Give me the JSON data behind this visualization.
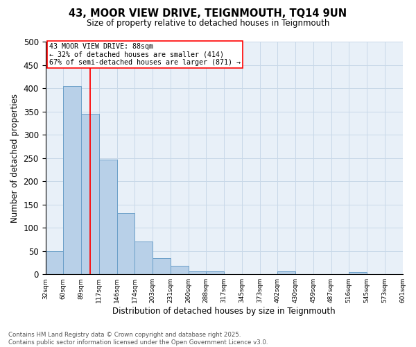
{
  "title": "43, MOOR VIEW DRIVE, TEIGNMOUTH, TQ14 9UN",
  "subtitle": "Size of property relative to detached houses in Teignmouth",
  "xlabel": "Distribution of detached houses by size in Teignmouth",
  "ylabel": "Number of detached properties",
  "bar_color": "#b8d0e8",
  "bar_edge_color": "#6a9fc8",
  "bar_heights": [
    50,
    405,
    345,
    247,
    132,
    70,
    35,
    18,
    6,
    6,
    0,
    0,
    0,
    6,
    0,
    0,
    0,
    5,
    0,
    0
  ],
  "bin_labels": [
    "32sqm",
    "60sqm",
    "89sqm",
    "117sqm",
    "146sqm",
    "174sqm",
    "203sqm",
    "231sqm",
    "260sqm",
    "288sqm",
    "317sqm",
    "345sqm",
    "373sqm",
    "402sqm",
    "430sqm",
    "459sqm",
    "487sqm",
    "516sqm",
    "545sqm",
    "573sqm",
    "601sqm"
  ],
  "ylim": [
    0,
    500
  ],
  "yticks": [
    0,
    50,
    100,
    150,
    200,
    250,
    300,
    350,
    400,
    450,
    500
  ],
  "red_line_x": 2.0,
  "annotation_text": "43 MOOR VIEW DRIVE: 88sqm\n← 32% of detached houses are smaller (414)\n67% of semi-detached houses are larger (871) →",
  "footer_line1": "Contains HM Land Registry data © Crown copyright and database right 2025.",
  "footer_line2": "Contains public sector information licensed under the Open Government Licence v3.0.",
  "grid_color": "#c8d8e8",
  "background_color": "#e8f0f8"
}
